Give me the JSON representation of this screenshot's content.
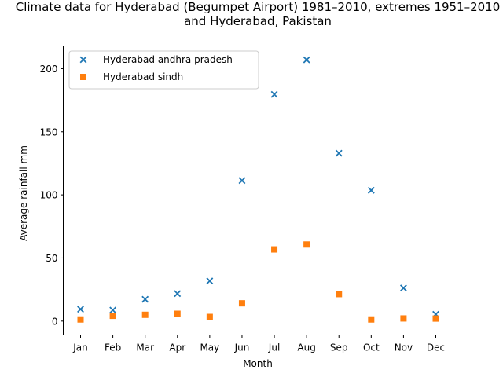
{
  "chart_data": {
    "type": "scatter",
    "title_lines": [
      "Climate data for Hyderabad (Begumpet Airport) 1981–2010, extremes 1951–2010",
      "and Hyderabad, Pakistan"
    ],
    "xlabel": "Month",
    "ylabel": "Average rainfall mm",
    "categories": [
      "Jan",
      "Feb",
      "Mar",
      "Apr",
      "May",
      "Jun",
      "Jul",
      "Aug",
      "Sep",
      "Oct",
      "Nov",
      "Dec"
    ],
    "ylim": [
      -11,
      218
    ],
    "yticks": [
      0,
      50,
      100,
      150,
      200
    ],
    "grid": false,
    "legend_position": "upper left",
    "series": [
      {
        "name": "Hyderabad andhra pradesh",
        "marker": "x",
        "color": "#1f77b4",
        "values": [
          9.4,
          8.7,
          17.3,
          21.8,
          31.8,
          111.4,
          179.6,
          207.0,
          133.0,
          103.6,
          26.2,
          5.4
        ]
      },
      {
        "name": "Hyderabad sindh",
        "marker": "square",
        "color": "#ff7f0e",
        "values": [
          1.3,
          4.2,
          5.0,
          5.8,
          3.3,
          14.1,
          56.8,
          60.7,
          21.4,
          1.3,
          2.1,
          2.0
        ]
      }
    ]
  }
}
